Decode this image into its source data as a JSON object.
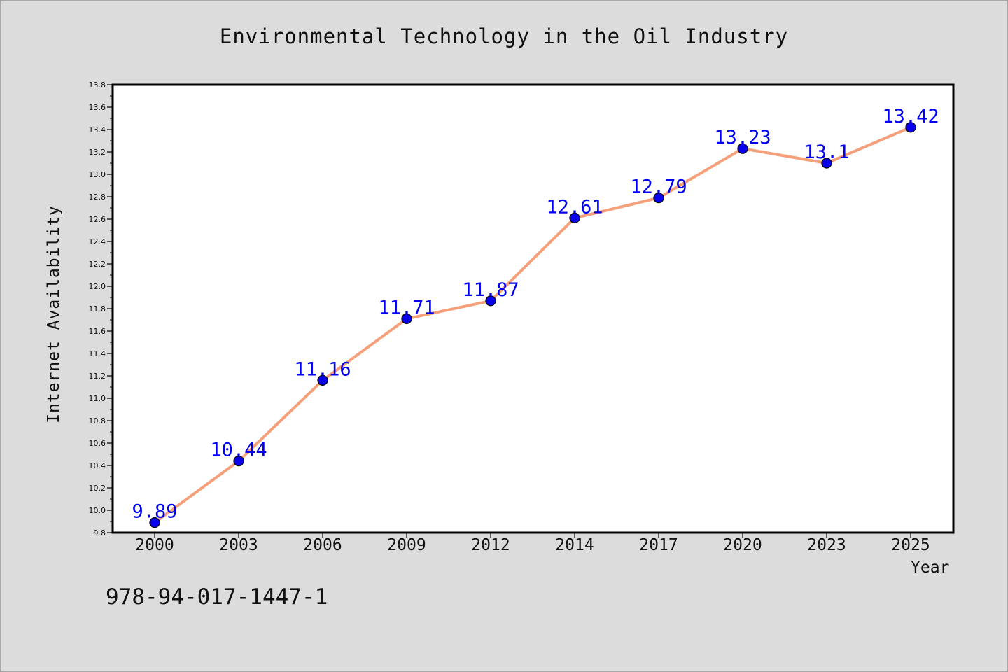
{
  "chart_data": {
    "type": "line",
    "title": "Environmental Technology in the Oil Industry",
    "xlabel": "Year",
    "ylabel": "Internet Availability",
    "categories": [
      "2000",
      "2003",
      "2006",
      "2009",
      "2012",
      "2014",
      "2017",
      "2020",
      "2023",
      "2025"
    ],
    "series": [
      {
        "values": [
          9.89,
          10.44,
          11.16,
          11.71,
          11.87,
          12.61,
          12.79,
          13.23,
          13.1,
          13.42
        ],
        "labels": [
          "9.89",
          "10.44",
          "11.16",
          "11.71",
          "11.87",
          "12.61",
          "12.79",
          "13.23",
          "13.1",
          "13.42"
        ]
      }
    ],
    "ylim": [
      9.8,
      13.8
    ],
    "yticks": [
      "9.8",
      "10.0",
      "10.2",
      "10.4",
      "10.6",
      "10.8",
      "11.0",
      "11.2",
      "11.4",
      "11.6",
      "11.8",
      "12.0",
      "12.2",
      "12.4",
      "12.6",
      "12.8",
      "13.0",
      "13.2",
      "13.4",
      "13.6",
      "13.8"
    ],
    "grid": false,
    "legend": "none",
    "line_color": "#f5a07a",
    "marker_color": "#0a00f0",
    "label_color": "#0000ee"
  },
  "footer": {
    "isbn": "978-94-017-1447-1"
  }
}
